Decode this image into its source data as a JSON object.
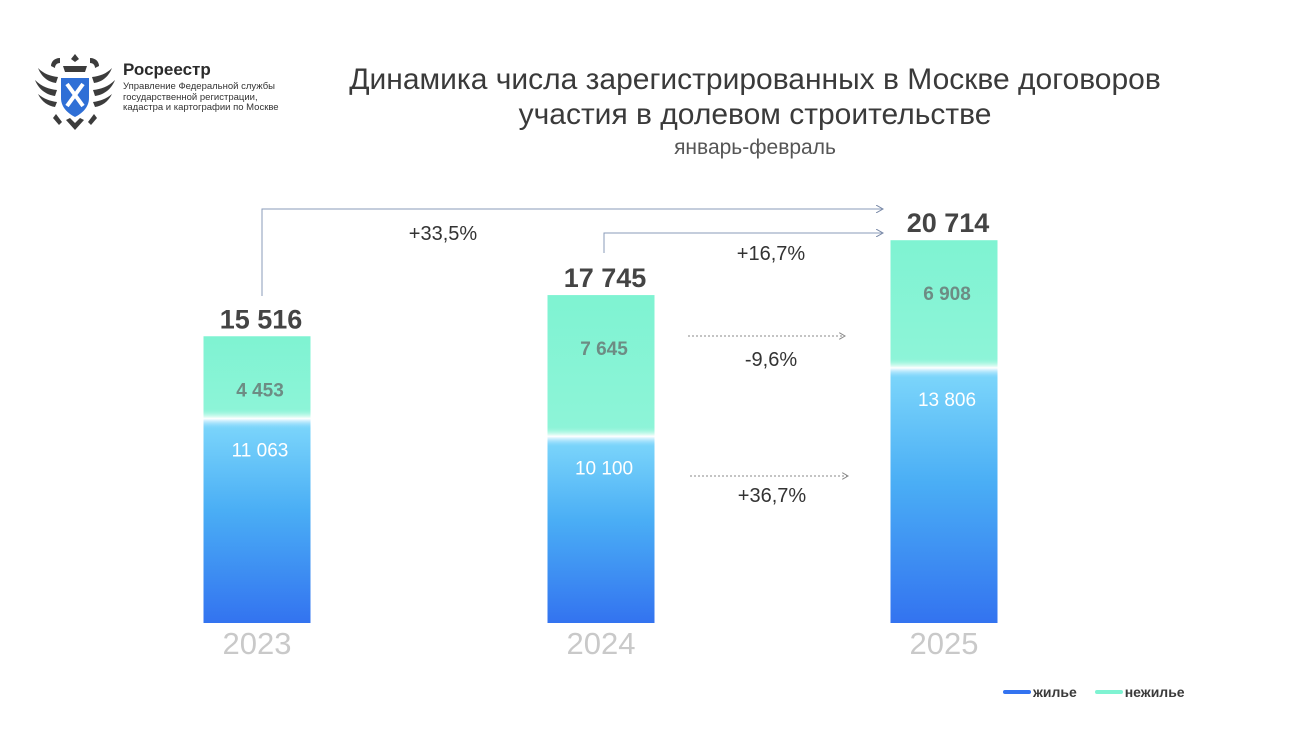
{
  "header": {
    "org_name": "Росреестр",
    "org_sub": "Управление Федеральной службы государственной регистрации, кадастра и картографии по Москве",
    "logo_icon": "double-headed-eagle-emblem"
  },
  "chart_data": {
    "type": "bar",
    "stacked": true,
    "title": "Динамика числа зарегистрированных в Москве договоров участия в долевом строительстве",
    "subtitle": "январь-февраль",
    "categories": [
      "2023",
      "2024",
      "2025"
    ],
    "series": [
      {
        "name": "жилье",
        "values": [
          11063,
          10100,
          13806
        ],
        "color": "#3373f0"
      },
      {
        "name": "нежилье",
        "values": [
          4453,
          7645,
          6908
        ],
        "color": "#7ff3d2"
      }
    ],
    "totals": [
      "15 516",
      "17 745",
      "20 714"
    ],
    "segment_labels": {
      "жилье": [
        "11 063",
        "10 100",
        "13 806"
      ],
      "нежилье": [
        "4 453",
        "7 645",
        "6 908"
      ]
    },
    "total_values": [
      15516,
      17745,
      20714
    ],
    "ylim": [
      0,
      23000
    ],
    "annotations": [
      {
        "from": "2023",
        "to": "2025",
        "text": "+33,5%",
        "kind": "total"
      },
      {
        "from": "2024",
        "to": "2025",
        "text": "+16,7%",
        "kind": "total"
      },
      {
        "from": "2024",
        "to": "2025",
        "text": "-9,6%",
        "kind": "нежилье"
      },
      {
        "from": "2024",
        "to": "2025",
        "text": "+36,7%",
        "kind": "жилье"
      }
    ],
    "legend_position": "bottom-right"
  }
}
